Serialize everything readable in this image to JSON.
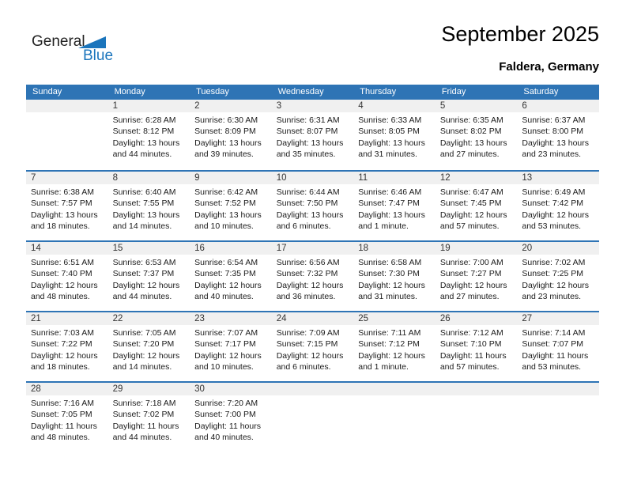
{
  "logo": {
    "part1": "General",
    "part2": "Blue"
  },
  "header": {
    "title": "September 2025",
    "subtitle": "Faldera, Germany"
  },
  "weekdays": [
    "Sunday",
    "Monday",
    "Tuesday",
    "Wednesday",
    "Thursday",
    "Friday",
    "Saturday"
  ],
  "colors": {
    "accent_blue": "#2E74B5",
    "logo_blue": "#1B75BC",
    "band_gray": "#F0F0F0"
  },
  "weeks": [
    [
      null,
      {
        "day": "1",
        "sunrise": "Sunrise: 6:28 AM",
        "sunset": "Sunset: 8:12 PM",
        "daylight": "Daylight: 13 hours and 44 minutes."
      },
      {
        "day": "2",
        "sunrise": "Sunrise: 6:30 AM",
        "sunset": "Sunset: 8:09 PM",
        "daylight": "Daylight: 13 hours and 39 minutes."
      },
      {
        "day": "3",
        "sunrise": "Sunrise: 6:31 AM",
        "sunset": "Sunset: 8:07 PM",
        "daylight": "Daylight: 13 hours and 35 minutes."
      },
      {
        "day": "4",
        "sunrise": "Sunrise: 6:33 AM",
        "sunset": "Sunset: 8:05 PM",
        "daylight": "Daylight: 13 hours and 31 minutes."
      },
      {
        "day": "5",
        "sunrise": "Sunrise: 6:35 AM",
        "sunset": "Sunset: 8:02 PM",
        "daylight": "Daylight: 13 hours and 27 minutes."
      },
      {
        "day": "6",
        "sunrise": "Sunrise: 6:37 AM",
        "sunset": "Sunset: 8:00 PM",
        "daylight": "Daylight: 13 hours and 23 minutes."
      }
    ],
    [
      {
        "day": "7",
        "sunrise": "Sunrise: 6:38 AM",
        "sunset": "Sunset: 7:57 PM",
        "daylight": "Daylight: 13 hours and 18 minutes."
      },
      {
        "day": "8",
        "sunrise": "Sunrise: 6:40 AM",
        "sunset": "Sunset: 7:55 PM",
        "daylight": "Daylight: 13 hours and 14 minutes."
      },
      {
        "day": "9",
        "sunrise": "Sunrise: 6:42 AM",
        "sunset": "Sunset: 7:52 PM",
        "daylight": "Daylight: 13 hours and 10 minutes."
      },
      {
        "day": "10",
        "sunrise": "Sunrise: 6:44 AM",
        "sunset": "Sunset: 7:50 PM",
        "daylight": "Daylight: 13 hours and 6 minutes."
      },
      {
        "day": "11",
        "sunrise": "Sunrise: 6:46 AM",
        "sunset": "Sunset: 7:47 PM",
        "daylight": "Daylight: 13 hours and 1 minute."
      },
      {
        "day": "12",
        "sunrise": "Sunrise: 6:47 AM",
        "sunset": "Sunset: 7:45 PM",
        "daylight": "Daylight: 12 hours and 57 minutes."
      },
      {
        "day": "13",
        "sunrise": "Sunrise: 6:49 AM",
        "sunset": "Sunset: 7:42 PM",
        "daylight": "Daylight: 12 hours and 53 minutes."
      }
    ],
    [
      {
        "day": "14",
        "sunrise": "Sunrise: 6:51 AM",
        "sunset": "Sunset: 7:40 PM",
        "daylight": "Daylight: 12 hours and 48 minutes."
      },
      {
        "day": "15",
        "sunrise": "Sunrise: 6:53 AM",
        "sunset": "Sunset: 7:37 PM",
        "daylight": "Daylight: 12 hours and 44 minutes."
      },
      {
        "day": "16",
        "sunrise": "Sunrise: 6:54 AM",
        "sunset": "Sunset: 7:35 PM",
        "daylight": "Daylight: 12 hours and 40 minutes."
      },
      {
        "day": "17",
        "sunrise": "Sunrise: 6:56 AM",
        "sunset": "Sunset: 7:32 PM",
        "daylight": "Daylight: 12 hours and 36 minutes."
      },
      {
        "day": "18",
        "sunrise": "Sunrise: 6:58 AM",
        "sunset": "Sunset: 7:30 PM",
        "daylight": "Daylight: 12 hours and 31 minutes."
      },
      {
        "day": "19",
        "sunrise": "Sunrise: 7:00 AM",
        "sunset": "Sunset: 7:27 PM",
        "daylight": "Daylight: 12 hours and 27 minutes."
      },
      {
        "day": "20",
        "sunrise": "Sunrise: 7:02 AM",
        "sunset": "Sunset: 7:25 PM",
        "daylight": "Daylight: 12 hours and 23 minutes."
      }
    ],
    [
      {
        "day": "21",
        "sunrise": "Sunrise: 7:03 AM",
        "sunset": "Sunset: 7:22 PM",
        "daylight": "Daylight: 12 hours and 18 minutes."
      },
      {
        "day": "22",
        "sunrise": "Sunrise: 7:05 AM",
        "sunset": "Sunset: 7:20 PM",
        "daylight": "Daylight: 12 hours and 14 minutes."
      },
      {
        "day": "23",
        "sunrise": "Sunrise: 7:07 AM",
        "sunset": "Sunset: 7:17 PM",
        "daylight": "Daylight: 12 hours and 10 minutes."
      },
      {
        "day": "24",
        "sunrise": "Sunrise: 7:09 AM",
        "sunset": "Sunset: 7:15 PM",
        "daylight": "Daylight: 12 hours and 6 minutes."
      },
      {
        "day": "25",
        "sunrise": "Sunrise: 7:11 AM",
        "sunset": "Sunset: 7:12 PM",
        "daylight": "Daylight: 12 hours and 1 minute."
      },
      {
        "day": "26",
        "sunrise": "Sunrise: 7:12 AM",
        "sunset": "Sunset: 7:10 PM",
        "daylight": "Daylight: 11 hours and 57 minutes."
      },
      {
        "day": "27",
        "sunrise": "Sunrise: 7:14 AM",
        "sunset": "Sunset: 7:07 PM",
        "daylight": "Daylight: 11 hours and 53 minutes."
      }
    ],
    [
      {
        "day": "28",
        "sunrise": "Sunrise: 7:16 AM",
        "sunset": "Sunset: 7:05 PM",
        "daylight": "Daylight: 11 hours and 48 minutes."
      },
      {
        "day": "29",
        "sunrise": "Sunrise: 7:18 AM",
        "sunset": "Sunset: 7:02 PM",
        "daylight": "Daylight: 11 hours and 44 minutes."
      },
      {
        "day": "30",
        "sunrise": "Sunrise: 7:20 AM",
        "sunset": "Sunset: 7:00 PM",
        "daylight": "Daylight: 11 hours and 40 minutes."
      },
      null,
      null,
      null,
      null
    ]
  ]
}
